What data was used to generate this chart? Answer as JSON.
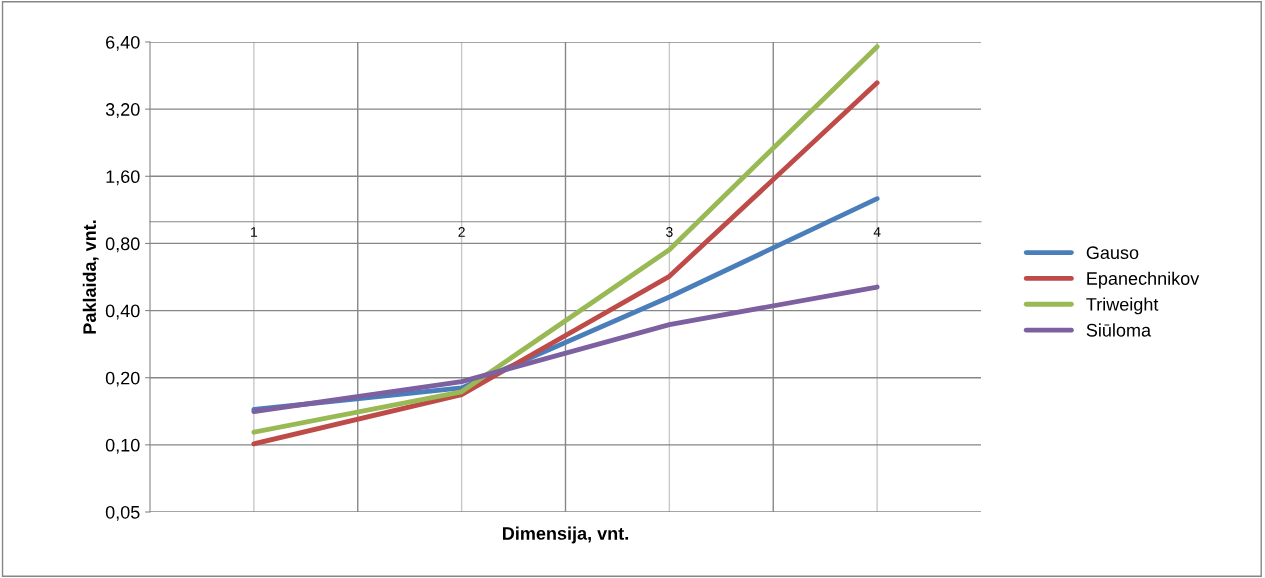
{
  "chart_data": {
    "type": "line",
    "xlabel": "Dimensija, vnt.",
    "ylabel": "Paklaida, vnt.",
    "categories": [
      "1",
      "2",
      "3",
      "4"
    ],
    "series": [
      {
        "name": "Gauso",
        "color": "#4a7ebb",
        "values": [
          0.144,
          0.18,
          0.46,
          1.27
        ]
      },
      {
        "name": "Epanechnikov",
        "color": "#be4b48",
        "values": [
          0.101,
          0.168,
          0.57,
          4.2
        ]
      },
      {
        "name": "Triweight",
        "color": "#98b954",
        "values": [
          0.114,
          0.173,
          0.75,
          6.1
        ]
      },
      {
        "name": "Siūloma",
        "color": "#7d60a0",
        "values": [
          0.141,
          0.192,
          0.346,
          0.51
        ]
      }
    ],
    "log": true,
    "ylim": [
      0.05,
      6.4
    ],
    "yticks": [
      {
        "value": 0.05,
        "label": "0,05"
      },
      {
        "value": 0.1,
        "label": "0,10"
      },
      {
        "value": 0.2,
        "label": "0,20"
      },
      {
        "value": 0.4,
        "label": "0,40"
      },
      {
        "value": 0.8,
        "label": "0,80"
      },
      {
        "value": 1.6,
        "label": "1,60"
      },
      {
        "value": 3.2,
        "label": "3,20"
      },
      {
        "value": 6.4,
        "label": "6,40"
      }
    ],
    "grid": true,
    "legend": "right",
    "marker": "none",
    "line_style": "solid"
  }
}
